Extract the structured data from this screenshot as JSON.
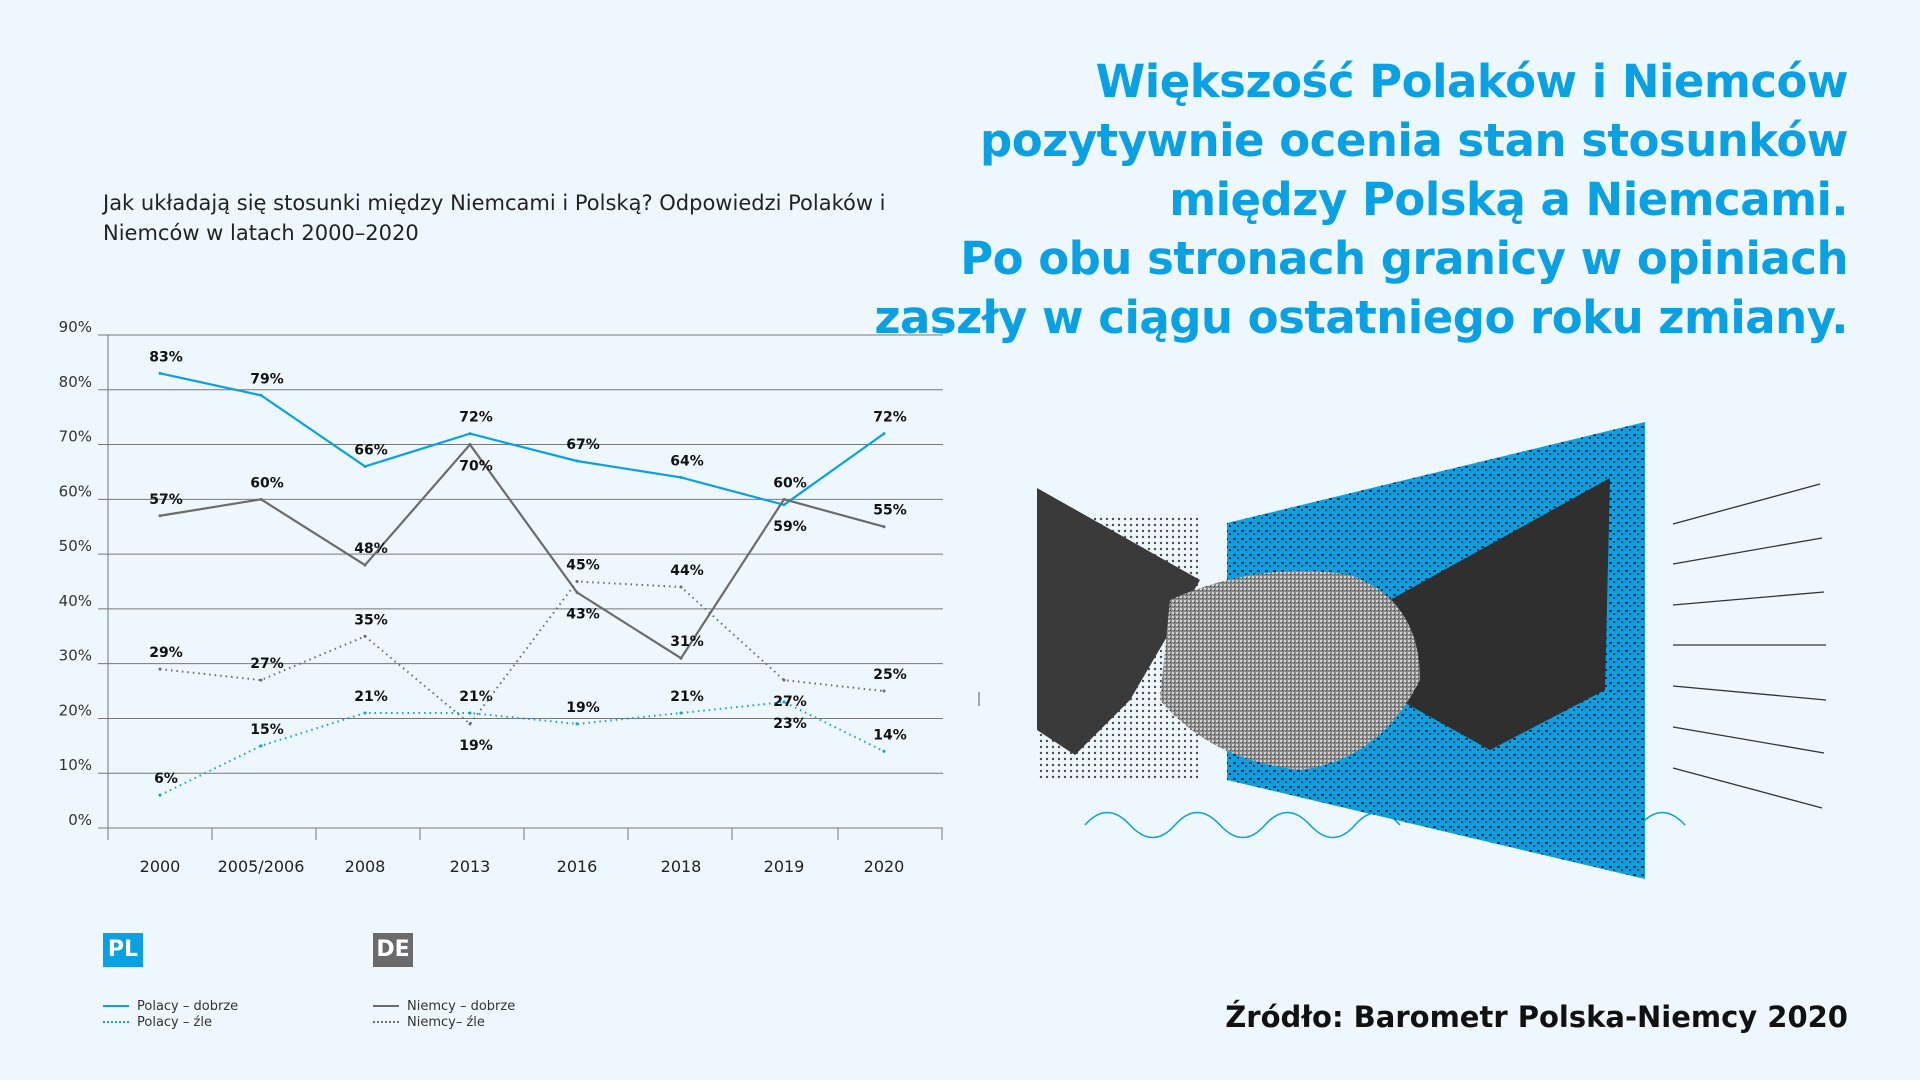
{
  "headline": {
    "lines": [
      "Większość Polaków i Niemców",
      "pozytywnie ocenia stan stosunków",
      "między Polską a Niemcami.",
      "Po obu stronach granicy w opiniach",
      "zaszły w ciągu ostatniego roku zmiany."
    ]
  },
  "source": "Źródło: Barometr Polska-Niemcy 2020",
  "legend": {
    "pl_badge": "PL",
    "de_badge": "DE",
    "pl_good": "Polacy – dobrze",
    "pl_bad": "Polacy – źle",
    "de_good": "Niemcy – dobrze",
    "de_bad": "Niemcy– źle"
  },
  "colors": {
    "pl": "#0aa0e2",
    "de": "#6b6b6b",
    "background": "#eef7fd"
  },
  "chart_data": {
    "type": "line",
    "title": "Jak układają się stosunki między Niemcami i Polską? Odpowiedzi Polaków i Niemców w latach 2000–2020",
    "categories": [
      "2000",
      "2005/2006",
      "2008",
      "2013",
      "2016",
      "2018",
      "2019",
      "2020"
    ],
    "ylim": [
      0,
      90
    ],
    "yticks": [
      "0%",
      "10%",
      "20%",
      "30%",
      "40%",
      "50%",
      "60%",
      "70%",
      "80%",
      "90%"
    ],
    "grid": true,
    "series": [
      {
        "name": "Polacy – dobrze",
        "style": "solid",
        "color": "#0aa0e2",
        "values": [
          83,
          79,
          66,
          72,
          67,
          64,
          59,
          72
        ],
        "labels": [
          "83%",
          "79%",
          "66%",
          "72%",
          "67%",
          "64%",
          "59%",
          "72%"
        ]
      },
      {
        "name": "Niemcy – dobrze",
        "style": "solid",
        "color": "#6b6b6b",
        "values": [
          57,
          60,
          48,
          70,
          43,
          31,
          60,
          55
        ],
        "labels": [
          "57%",
          "60%",
          "48%",
          "70%",
          "43%",
          "31%",
          "60%",
          "55%"
        ]
      },
      {
        "name": "Polacy – źle",
        "style": "dotted",
        "color": "#0aa0e2",
        "values": [
          6,
          15,
          21,
          21,
          19,
          21,
          23,
          14
        ],
        "labels": [
          "6%",
          "15%",
          "21%",
          "21%",
          "19%",
          "21%",
          "23%",
          "14%"
        ]
      },
      {
        "name": "Niemcy– źle",
        "style": "dotted",
        "color": "#6b6b6b",
        "values": [
          29,
          27,
          35,
          19,
          45,
          44,
          27,
          25
        ],
        "labels": [
          "29%",
          "27%",
          "35%",
          "19%",
          "45%",
          "44%",
          "27%",
          "25%"
        ]
      }
    ]
  }
}
